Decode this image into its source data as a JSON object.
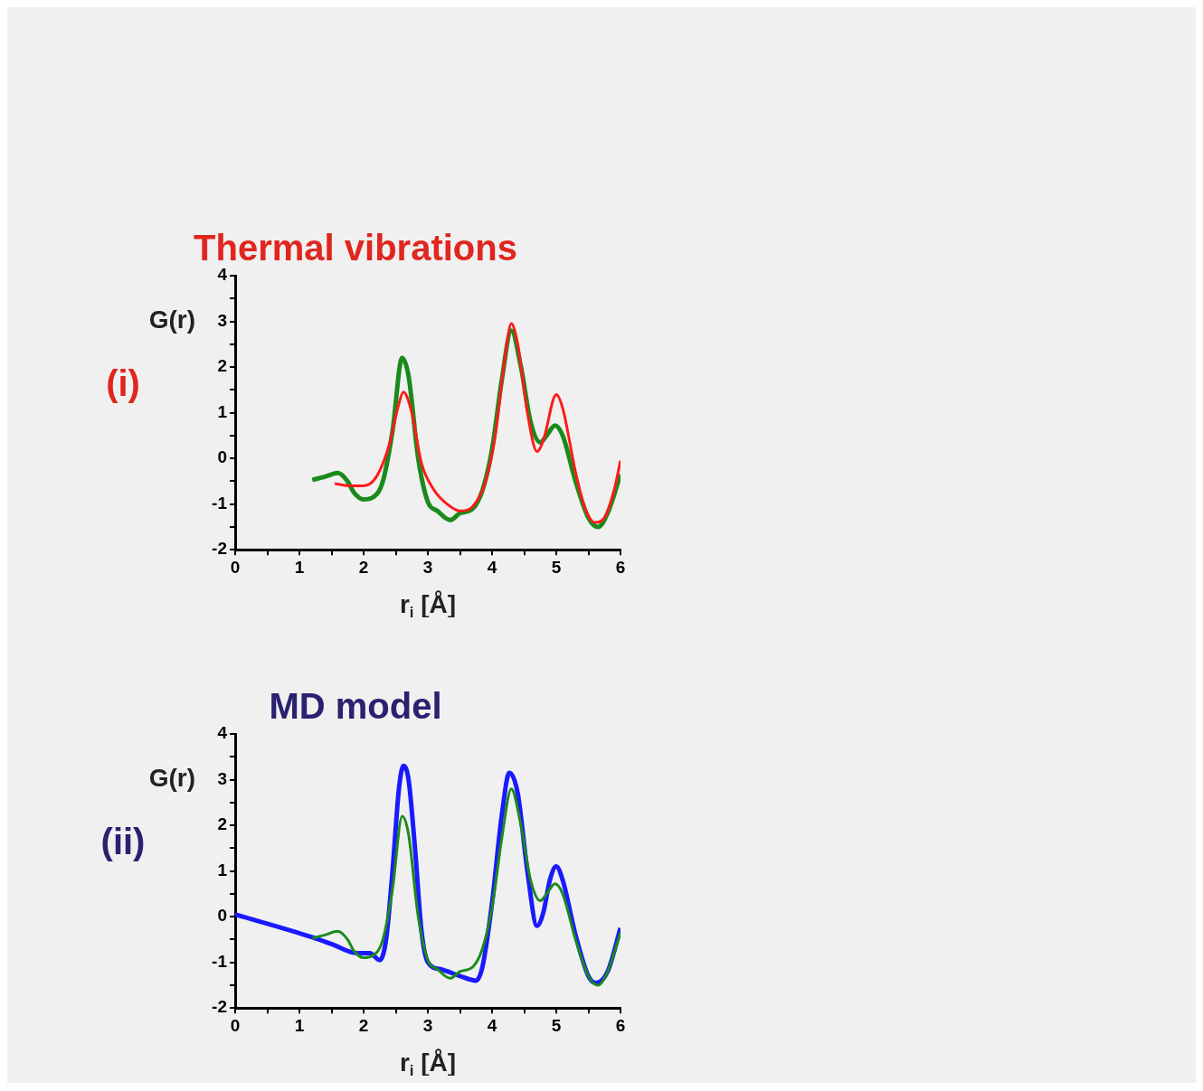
{
  "chart_data": [
    {
      "type": "line",
      "title": "Thermal vibrations",
      "ylabel": "G(r)",
      "xlabel": "r$_{i}$ [Å]",
      "annotations": [
        "(i)"
      ],
      "xlim": [
        0,
        6
      ],
      "ylim": [
        -2,
        4
      ],
      "xticks": [
        0,
        {
          "value": 0.5,
          "label": null
        },
        1,
        {
          "value": 1.5,
          "label": null
        },
        2,
        {
          "value": 2.5,
          "label": null
        },
        3,
        {
          "value": 3.5,
          "label": null
        },
        4,
        {
          "value": 4.5,
          "label": null
        },
        5,
        {
          "value": 5.5,
          "label": null
        },
        6
      ],
      "yticks": [
        -2,
        {
          "value": -1.5,
          "label": null
        },
        -1,
        {
          "value": -0.5,
          "label": null
        },
        0,
        {
          "value": 0.5,
          "label": null
        },
        1,
        {
          "value": 1.5,
          "label": null
        },
        2,
        {
          "value": 2.5,
          "label": null
        },
        3,
        {
          "value": 3.5,
          "label": null
        },
        4
      ],
      "grid": false,
      "legend": false,
      "marker": "none",
      "line_style": "solid",
      "series": [
        {
          "color": "#1a8a1a",
          "x": [
            1.2,
            1.4,
            1.6,
            1.75,
            1.85,
            2.0,
            2.15,
            2.3,
            2.45,
            2.6,
            2.7,
            2.85,
            3.0,
            3.15,
            3.35,
            3.5,
            3.7,
            3.85,
            4.0,
            4.15,
            4.3,
            4.45,
            4.6,
            4.75,
            4.85,
            4.98,
            5.1,
            5.3,
            5.5,
            5.65,
            5.8,
            6.0
          ],
          "values": [
            -0.47,
            -0.4,
            -0.32,
            -0.5,
            -0.75,
            -0.9,
            -0.85,
            -0.5,
            0.6,
            2.2,
            1.8,
            0,
            -0.95,
            -1.15,
            -1.35,
            -1.2,
            -1.1,
            -0.7,
            0.2,
            1.7,
            2.8,
            2.0,
            0.8,
            0.35,
            0.5,
            0.72,
            0.5,
            -0.5,
            -1.3,
            -1.5,
            -1.2,
            -0.35
          ]
        },
        {
          "color": "#ff1a1a",
          "x": [
            1.55,
            1.8,
            2.0,
            2.2,
            2.4,
            2.55,
            2.62,
            2.75,
            2.9,
            3.1,
            3.3,
            3.5,
            3.7,
            3.9,
            4.05,
            4.2,
            4.3,
            4.4,
            4.55,
            4.7,
            4.8,
            5.0,
            5.1,
            5.3,
            5.45,
            5.6,
            5.75,
            5.9,
            6.0
          ],
          "values": [
            -0.55,
            -0.6,
            -0.6,
            -0.4,
            0.3,
            1.2,
            1.45,
            1.0,
            -0.1,
            -0.7,
            -1.0,
            -1.15,
            -1.05,
            -0.5,
            0.5,
            2.2,
            2.95,
            2.5,
            1.0,
            0.15,
            0.4,
            1.4,
            1.1,
            -0.3,
            -1.1,
            -1.4,
            -1.3,
            -0.7,
            -0.05
          ]
        }
      ]
    },
    {
      "type": "line",
      "title": "MD model",
      "ylabel": "G(r)",
      "xlabel": "r$_{i}$ [Å]",
      "annotations": [
        "(ii)"
      ],
      "xlim": [
        0,
        6
      ],
      "ylim": [
        -2,
        4
      ],
      "xticks": [
        0,
        {
          "value": 0.5,
          "label": null
        },
        1,
        {
          "value": 1.5,
          "label": null
        },
        2,
        {
          "value": 2.5,
          "label": null
        },
        3,
        {
          "value": 3.5,
          "label": null
        },
        4,
        {
          "value": 4.5,
          "label": null
        },
        5,
        {
          "value": 5.5,
          "label": null
        },
        6
      ],
      "yticks": [
        -2,
        {
          "value": -1.5,
          "label": null
        },
        -1,
        {
          "value": -0.5,
          "label": null
        },
        0,
        {
          "value": 0.5,
          "label": null
        },
        1,
        {
          "value": 1.5,
          "label": null
        },
        2,
        {
          "value": 2.5,
          "label": null
        },
        3,
        {
          "value": 3.5,
          "label": null
        },
        4
      ],
      "grid": false,
      "legend": false,
      "marker": "none",
      "line_style": "solid",
      "series": [
        {
          "color": "#1a1aff",
          "x": [
            0,
            1.2,
            1.5,
            1.9,
            2.1,
            2.25,
            2.35,
            2.45,
            2.55,
            2.62,
            2.7,
            2.8,
            2.9,
            3.0,
            3.2,
            3.5,
            3.75,
            3.85,
            4.0,
            4.15,
            4.27,
            4.4,
            4.55,
            4.7,
            4.8,
            4.9,
            5.0,
            5.1,
            5.3,
            5.5,
            5.62,
            5.8,
            6.0
          ],
          "values": [
            0.05,
            -0.45,
            -0.6,
            -0.8,
            -0.8,
            -0.95,
            -0.5,
            1.0,
            2.8,
            3.3,
            3.0,
            1.5,
            -0.3,
            -1.0,
            -1.15,
            -1.3,
            -1.4,
            -1.1,
            0.3,
            2.2,
            3.15,
            2.7,
            1.0,
            -0.2,
            0.1,
            0.8,
            1.1,
            0.8,
            -0.4,
            -1.3,
            -1.45,
            -1.2,
            -0.25
          ]
        },
        {
          "color": "#1a8a1a",
          "x": [
            1.2,
            1.4,
            1.6,
            1.75,
            1.85,
            2.0,
            2.15,
            2.3,
            2.45,
            2.6,
            2.7,
            2.85,
            3.0,
            3.15,
            3.35,
            3.5,
            3.7,
            3.85,
            4.0,
            4.15,
            4.3,
            4.45,
            4.6,
            4.75,
            4.85,
            4.98,
            5.1,
            5.3,
            5.5,
            5.65,
            5.8,
            6.0
          ],
          "values": [
            -0.47,
            -0.4,
            -0.32,
            -0.5,
            -0.75,
            -0.9,
            -0.85,
            -0.5,
            0.6,
            2.2,
            1.8,
            0,
            -0.95,
            -1.15,
            -1.35,
            -1.2,
            -1.1,
            -0.7,
            0.2,
            1.7,
            2.8,
            2.0,
            0.8,
            0.35,
            0.5,
            0.72,
            0.5,
            -0.5,
            -1.3,
            -1.5,
            -1.2,
            -0.35
          ]
        }
      ]
    }
  ]
}
